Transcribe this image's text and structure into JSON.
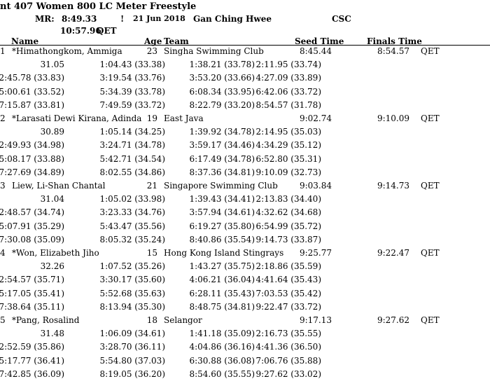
{
  "header": {
    "title": "nt 407  Women 800 LC Meter Freestyle",
    "record_label": "MR:",
    "record_time": "8:49.33",
    "record_flag": "!",
    "record_date": "21 Jun 2018",
    "record_holder": "Gan Ching Hwee",
    "record_team": "CSC",
    "qual_time": "10:57.96",
    "qual_label": "QET"
  },
  "columns": {
    "name": "Name",
    "age": "Age",
    "team": "Team",
    "seed": "Seed Time",
    "finals": "Finals Time"
  },
  "entries": [
    {
      "place": "1",
      "name": "*Himathongkom, Ammiga",
      "age": "23",
      "team": "Singha Swimming Club",
      "seed": "8:45.44",
      "finals": "8:54.57",
      "flag": "QET",
      "splits": [
        [
          "31.05",
          "1:04.43 (33.38)",
          "1:38.21 (33.78)",
          "2:11.95 (33.74)"
        ],
        [
          "2:45.78 (33.83)",
          "3:19.54 (33.76)",
          "3:53.20 (33.66)",
          "4:27.09 (33.89)"
        ],
        [
          "5:00.61 (33.52)",
          "5:34.39 (33.78)",
          "6:08.34 (33.95)",
          "6:42.06 (33.72)"
        ],
        [
          "7:15.87 (33.81)",
          "7:49.59 (33.72)",
          "8:22.79 (33.20)",
          "8:54.57 (31.78)"
        ]
      ]
    },
    {
      "place": "2",
      "name": "*Larasati Dewi Kirana, Adinda",
      "age": "19",
      "team": "East Java",
      "seed": "9:02.74",
      "finals": "9:10.09",
      "flag": "QET",
      "splits": [
        [
          "30.89",
          "1:05.14 (34.25)",
          "1:39.92 (34.78)",
          "2:14.95 (35.03)"
        ],
        [
          "2:49.93 (34.98)",
          "3:24.71 (34.78)",
          "3:59.17 (34.46)",
          "4:34.29 (35.12)"
        ],
        [
          "5:08.17 (33.88)",
          "5:42.71 (34.54)",
          "6:17.49 (34.78)",
          "6:52.80 (35.31)"
        ],
        [
          "7:27.69 (34.89)",
          "8:02.55 (34.86)",
          "8:37.36 (34.81)",
          "9:10.09 (32.73)"
        ]
      ]
    },
    {
      "place": "3",
      "name": "Liew, Li-Shan Chantal",
      "age": "21",
      "team": "Singapore Swimming Club",
      "seed": "9:03.84",
      "finals": "9:14.73",
      "flag": "QET",
      "splits": [
        [
          "31.04",
          "1:05.02 (33.98)",
          "1:39.43 (34.41)",
          "2:13.83 (34.40)"
        ],
        [
          "2:48.57 (34.74)",
          "3:23.33 (34.76)",
          "3:57.94 (34.61)",
          "4:32.62 (34.68)"
        ],
        [
          "5:07.91 (35.29)",
          "5:43.47 (35.56)",
          "6:19.27 (35.80)",
          "6:54.99 (35.72)"
        ],
        [
          "7:30.08 (35.09)",
          "8:05.32 (35.24)",
          "8:40.86 (35.54)",
          "9:14.73 (33.87)"
        ]
      ]
    },
    {
      "place": "4",
      "name": "*Won, Elizabeth Jiho",
      "age": "15",
      "team": "Hong Kong Island Stingrays",
      "seed": "9:25.77",
      "finals": "9:22.47",
      "flag": "QET",
      "splits": [
        [
          "32.26",
          "1:07.52 (35.26)",
          "1:43.27 (35.75)",
          "2:18.86 (35.59)"
        ],
        [
          "2:54.57 (35.71)",
          "3:30.17 (35.60)",
          "4:06.21 (36.04)",
          "4:41.64 (35.43)"
        ],
        [
          "5:17.05 (35.41)",
          "5:52.68 (35.63)",
          "6:28.11 (35.43)",
          "7:03.53 (35.42)"
        ],
        [
          "7:38.64 (35.11)",
          "8:13.94 (35.30)",
          "8:48.75 (34.81)",
          "9:22.47 (33.72)"
        ]
      ]
    },
    {
      "place": "5",
      "name": "*Pang, Rosalind",
      "age": "18",
      "team": "Selangor",
      "seed": "9:17.13",
      "finals": "9:27.62",
      "flag": "QET",
      "splits": [
        [
          "31.48",
          "1:06.09 (34.61)",
          "1:41.18 (35.09)",
          "2:16.73 (35.55)"
        ],
        [
          "2:52.59 (35.86)",
          "3:28.70 (36.11)",
          "4:04.86 (36.16)",
          "4:41.36 (36.50)"
        ],
        [
          "5:17.77 (36.41)",
          "5:54.80 (37.03)",
          "6:30.88 (36.08)",
          "7:06.76 (35.88)"
        ],
        [
          "7:42.85 (36.09)",
          "8:19.05 (36.20)",
          "8:54.60 (35.55)",
          "9:27.62 (33.02)"
        ]
      ]
    }
  ]
}
